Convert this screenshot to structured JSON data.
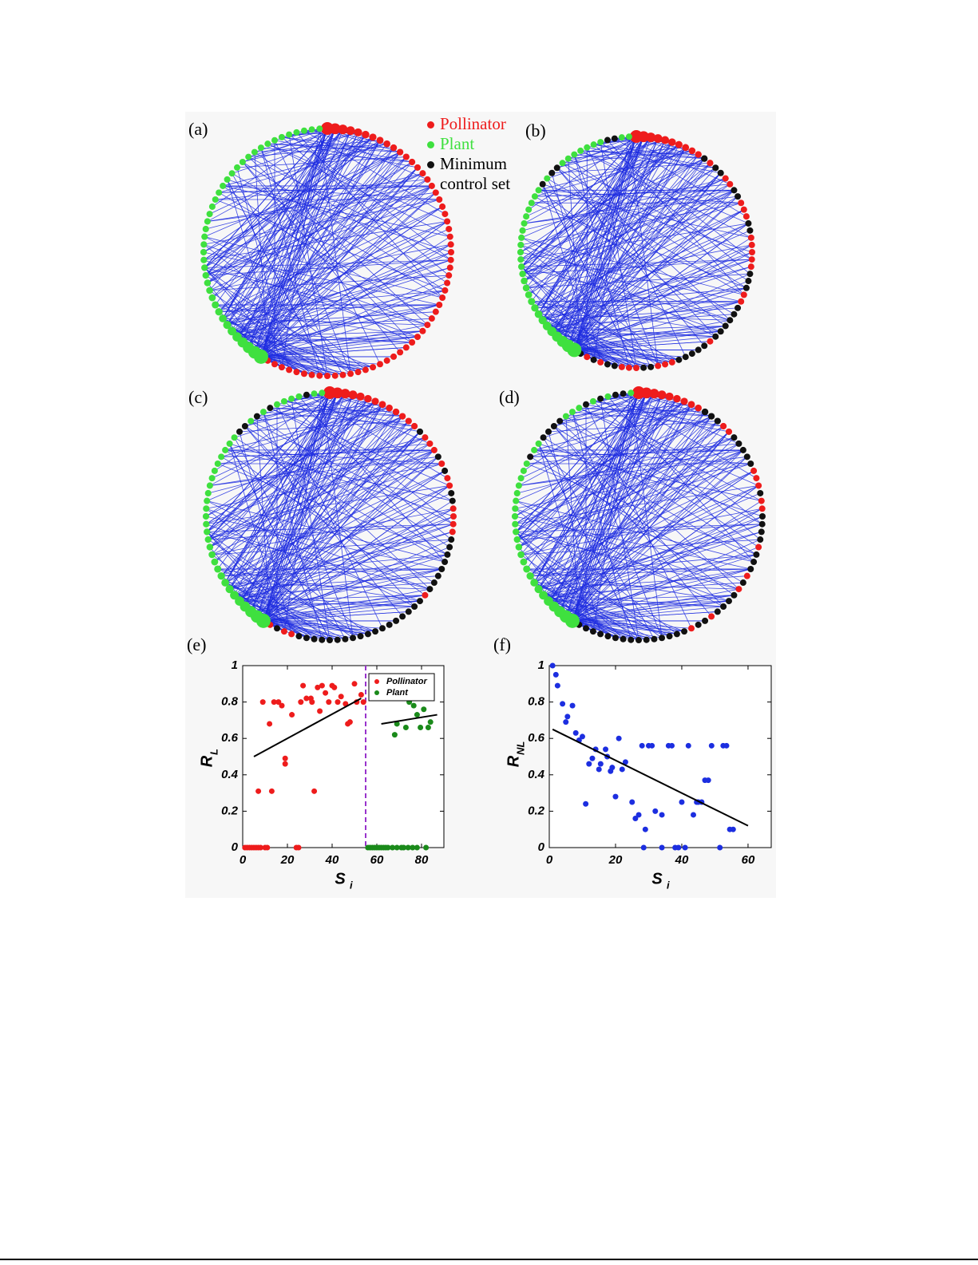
{
  "panel_labels": [
    "(a)",
    "(b)",
    "(c)",
    "(d)"
  ],
  "network_legend": [
    {
      "name": "Pollinator",
      "color": "#ee1c1c"
    },
    {
      "name": "Plant",
      "color": "#3fe03f"
    },
    {
      "name": "Minimum control set",
      "color": "#111111"
    }
  ],
  "chart_data": [
    {
      "type": "scatter",
      "panel_label": "(e)",
      "xlabel": "S",
      "xlabel_sub": "i",
      "ylabel": "R",
      "ylabel_sub": "L",
      "xlim": [
        0,
        90
      ],
      "ylim": [
        0,
        1
      ],
      "xticks": [
        0,
        20,
        40,
        60,
        80
      ],
      "yticks": [
        0,
        0.2,
        0.4,
        0.6,
        0.8,
        1
      ],
      "legend": "upper right",
      "series": [
        {
          "name": "Pollinator",
          "color": "#ee1c1c",
          "x": [
            1,
            2,
            3,
            4,
            5,
            6,
            7,
            8,
            10,
            11,
            24,
            25,
            7,
            13,
            32,
            9,
            12,
            14,
            16,
            17.5,
            19,
            19,
            22,
            26,
            27,
            28.5,
            30.5,
            31,
            33.5,
            34.5,
            35.5,
            37,
            38.5,
            40,
            41,
            42.5,
            44,
            46,
            47,
            48,
            50,
            51,
            53,
            54
          ],
          "values": [
            0,
            0,
            0,
            0,
            0,
            0,
            0,
            0,
            0,
            0,
            0,
            0,
            0.31,
            0.31,
            0.31,
            0.8,
            0.68,
            0.8,
            0.8,
            0.78,
            0.49,
            0.46,
            0.73,
            0.8,
            0.89,
            0.82,
            0.82,
            0.8,
            0.88,
            0.75,
            0.89,
            0.85,
            0.8,
            0.89,
            0.88,
            0.8,
            0.83,
            0.79,
            0.68,
            0.69,
            0.9,
            0.8,
            0.84,
            0.8
          ]
        },
        {
          "name": "Plant",
          "color": "#1a8a1a",
          "x": [
            56,
            57,
            58,
            59,
            60,
            61,
            62,
            63,
            64,
            65,
            67,
            69,
            71,
            72,
            74,
            76,
            78,
            82,
            68,
            69,
            73,
            74.5,
            76.5,
            78,
            79.5,
            83,
            84,
            81
          ],
          "values": [
            0,
            0,
            0,
            0,
            0,
            0,
            0,
            0,
            0,
            0,
            0,
            0,
            0,
            0,
            0,
            0,
            0,
            0,
            0.62,
            0.68,
            0.66,
            0.8,
            0.78,
            0.73,
            0.66,
            0.66,
            0.69,
            0.76
          ]
        }
      ],
      "fits": [
        {
          "color": "#000000",
          "x": [
            5,
            53
          ],
          "values": [
            0.5,
            0.82
          ]
        },
        {
          "color": "#000000",
          "x": [
            62,
            87
          ],
          "values": [
            0.68,
            0.73
          ]
        }
      ],
      "divider": {
        "x": 55,
        "color": "#9933cc"
      }
    },
    {
      "type": "scatter",
      "panel_label": "(f)",
      "xlabel": "S",
      "xlabel_sub": "i",
      "ylabel": "R",
      "ylabel_sub": "NL",
      "xlim": [
        0,
        67
      ],
      "ylim": [
        0,
        1
      ],
      "xticks": [
        0,
        20,
        40,
        60
      ],
      "yticks": [
        0,
        0.2,
        0.4,
        0.6,
        0.8,
        1
      ],
      "color": "#1c2ee0",
      "x": [
        1,
        2,
        2.5,
        4,
        5,
        5.5,
        7,
        8,
        9,
        10,
        11,
        12,
        13,
        14,
        15,
        15.5,
        17,
        17.5,
        18.5,
        19,
        20,
        21,
        22,
        23,
        25,
        26,
        27,
        28,
        28.5,
        29,
        30,
        31,
        32,
        34,
        34,
        36,
        37,
        38,
        39,
        40,
        41,
        42,
        43.5,
        44.5,
        45,
        46,
        47,
        48,
        49,
        51.5,
        52.5,
        53.5,
        54.5,
        55.5
      ],
      "values": [
        1,
        0.95,
        0.89,
        0.79,
        0.69,
        0.72,
        0.78,
        0.63,
        0.59,
        0.61,
        0.24,
        0.46,
        0.49,
        0.54,
        0.43,
        0.46,
        0.54,
        0.5,
        0.42,
        0.44,
        0.28,
        0.6,
        0.43,
        0.47,
        0.25,
        0.16,
        0.18,
        0.56,
        0,
        0.1,
        0.56,
        0.56,
        0.2,
        0.18,
        0,
        0.56,
        0.56,
        0,
        0,
        0.25,
        0,
        0.56,
        0.18,
        0.25,
        0.25,
        0.25,
        0.37,
        0.37,
        0.56,
        0,
        0.56,
        0.56,
        0.1,
        0.1
      ],
      "fits": [
        {
          "color": "#000000",
          "x": [
            1,
            60
          ],
          "values": [
            0.65,
            0.12
          ]
        }
      ]
    }
  ]
}
